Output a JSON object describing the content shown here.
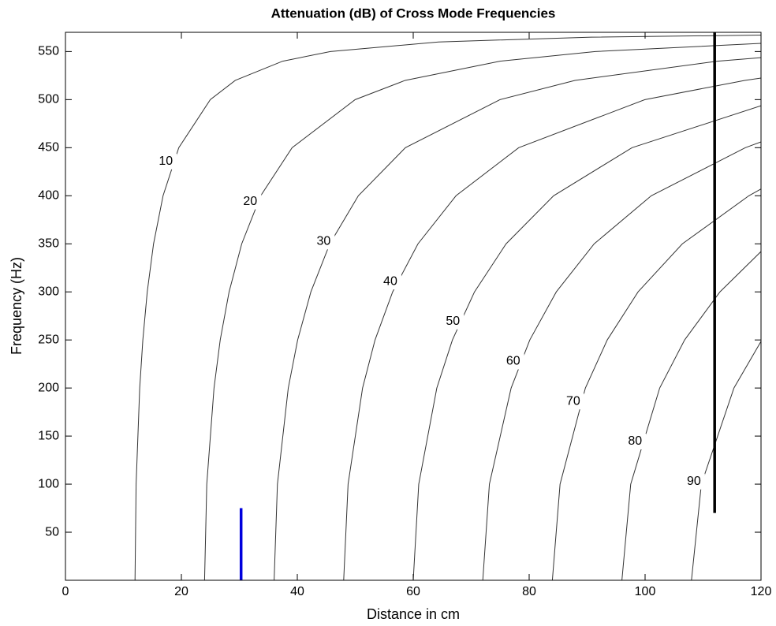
{
  "chart_data": {
    "type": "contour",
    "title": "Attenuation (dB) of Cross Mode Frequencies",
    "xlabel": "Distance in cm",
    "ylabel": "Frequency (Hz)",
    "xlim": [
      0,
      120
    ],
    "ylim": [
      0,
      570
    ],
    "xticks": [
      0,
      20,
      40,
      60,
      80,
      100,
      120
    ],
    "yticks": [
      50,
      100,
      150,
      200,
      250,
      300,
      350,
      400,
      450,
      500,
      550
    ],
    "color": "#333333",
    "series": [
      {
        "name": "10",
        "x": [
          12,
          12.19,
          12.81,
          13.35,
          14.11,
          15.2,
          16.84,
          19.55,
          24.99,
          29.3,
          37.48,
          45.7,
          64.35,
          90.74,
          120
        ],
        "values": [
          0,
          100,
          200,
          250,
          300,
          350,
          400,
          450,
          500,
          520,
          540,
          550,
          560,
          565,
          567.1
        ]
      },
      {
        "name": "20",
        "x": [
          24,
          24.38,
          25.63,
          26.7,
          28.23,
          30.41,
          33.69,
          39.1,
          49.98,
          58.6,
          74.97,
          91.41,
          120
        ],
        "values": [
          0,
          100,
          200,
          250,
          300,
          350,
          400,
          450,
          500,
          520,
          540,
          550,
          558.5
        ]
      },
      {
        "name": "30",
        "x": [
          36,
          36.57,
          38.44,
          40.06,
          42.34,
          45.61,
          50.53,
          58.65,
          74.98,
          87.9,
          112.45,
          120
        ],
        "values": [
          0,
          100,
          200,
          250,
          300,
          350,
          400,
          450,
          500,
          520,
          540,
          543.7
        ]
      },
      {
        "name": "40",
        "x": [
          48,
          48.76,
          51.26,
          53.41,
          56.45,
          60.82,
          67.38,
          78.2,
          99.97,
          117.2,
          120
        ],
        "values": [
          0,
          100,
          200,
          250,
          300,
          350,
          400,
          450,
          500,
          520,
          522.4
        ]
      },
      {
        "name": "50",
        "x": [
          60,
          60.95,
          64.07,
          66.76,
          70.57,
          76.02,
          84.22,
          97.75,
          120
        ],
        "values": [
          0,
          100,
          200,
          250,
          300,
          350,
          400,
          450,
          493.6
        ]
      },
      {
        "name": "60",
        "x": [
          72,
          73.14,
          76.89,
          80.11,
          84.68,
          91.22,
          101.07,
          117.3,
          120
        ],
        "values": [
          0,
          100,
          200,
          250,
          300,
          350,
          400,
          450,
          456
        ]
      },
      {
        "name": "70",
        "x": [
          84,
          85.33,
          89.7,
          93.47,
          98.79,
          106.43,
          117.91,
          120
        ],
        "values": [
          0,
          100,
          200,
          250,
          300,
          350,
          400,
          407.1
        ]
      },
      {
        "name": "80",
        "x": [
          96,
          97.52,
          102.52,
          106.82,
          112.91,
          120
        ],
        "values": [
          0,
          100,
          200,
          250,
          300,
          342
        ]
      },
      {
        "name": "90",
        "x": [
          108,
          109.71,
          115.33,
          120
        ],
        "values": [
          0,
          100,
          200,
          248.5
        ]
      }
    ],
    "markers": [
      {
        "x": 112,
        "y": [
          70,
          570
        ],
        "color": "#000000"
      },
      {
        "x": 30.3,
        "y": [
          0,
          75
        ],
        "color": "#0000dd"
      }
    ]
  }
}
